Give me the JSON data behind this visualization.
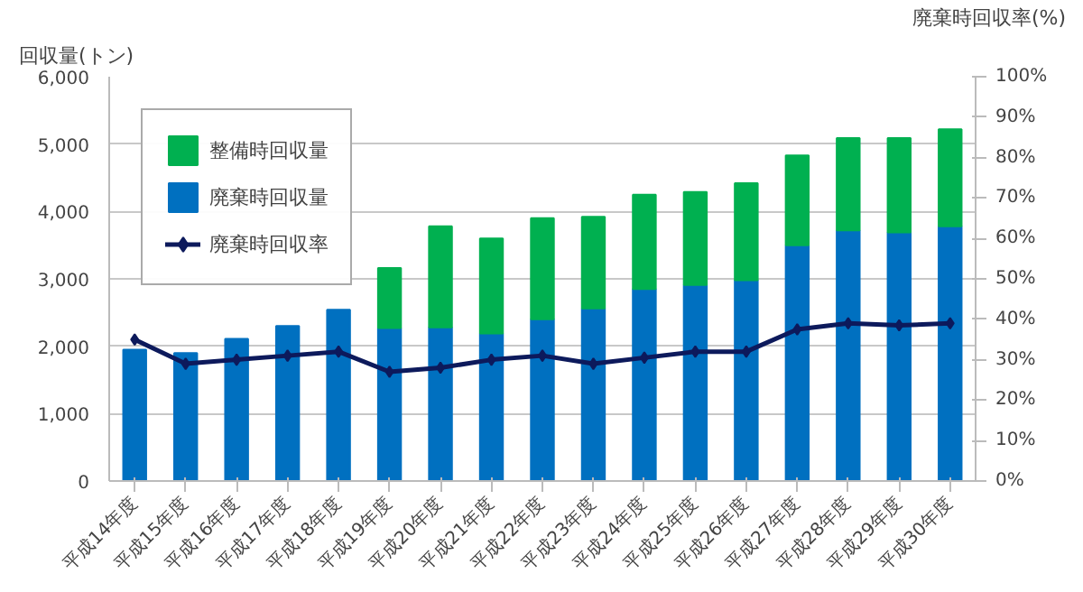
{
  "chart_data": {
    "type": "bar",
    "stacked": true,
    "ylabel": "回収量(トン)",
    "y2label": "廃棄時回収率(%)",
    "categories": [
      "平成14年度",
      "平成15年度",
      "平成16年度",
      "平成17年度",
      "平成18年度",
      "平成19年度",
      "平成20年度",
      "平成21年度",
      "平成22年度",
      "平成23年度",
      "平成24年度",
      "平成25年度",
      "平成26年度",
      "平成27年度",
      "平成28年度",
      "平成29年度",
      "平成30年度"
    ],
    "series": [
      {
        "name": "廃棄時回収量",
        "color": "#0070c0",
        "values": [
          1950,
          1900,
          2110,
          2300,
          2540,
          2270,
          2280,
          2190,
          2400,
          2560,
          2850,
          2910,
          2980,
          3500,
          3720,
          3690,
          3780
        ]
      },
      {
        "name": "整備時回収量",
        "color": "#00b050",
        "values": [
          null,
          null,
          null,
          null,
          null,
          890,
          1500,
          1410,
          1500,
          1360,
          1400,
          1380,
          1440,
          1330,
          1370,
          1400,
          1440
        ]
      },
      {
        "name": "廃棄時回収率",
        "type": "line",
        "axis": "y2",
        "color": "#0d1a5c",
        "marker": "diamond",
        "values": [
          35,
          29,
          30,
          31,
          32,
          27,
          28,
          30,
          31,
          29,
          30.5,
          32,
          32,
          37.5,
          39,
          38.5,
          39
        ]
      }
    ],
    "ylim": [
      0,
      6000
    ],
    "yticks": [
      {
        "value": 0,
        "label": "0"
      },
      {
        "value": 1000,
        "label": "1,000"
      },
      {
        "value": 2000,
        "label": "2,000"
      },
      {
        "value": 3000,
        "label": "3,000"
      },
      {
        "value": 4000,
        "label": "4,000"
      },
      {
        "value": 5000,
        "label": "5,000"
      },
      {
        "value": 6000,
        "label": "6,000"
      }
    ],
    "y2lim": [
      0,
      100
    ],
    "y2ticks": [
      {
        "value": 0,
        "label": "0%"
      },
      {
        "value": 10,
        "label": "10%"
      },
      {
        "value": 20,
        "label": "20%"
      },
      {
        "value": 30,
        "label": "30%"
      },
      {
        "value": 40,
        "label": "40%"
      },
      {
        "value": 50,
        "label": "50%"
      },
      {
        "value": 60,
        "label": "60%"
      },
      {
        "value": 70,
        "label": "70%"
      },
      {
        "value": 80,
        "label": "80%"
      },
      {
        "value": 90,
        "label": "90%"
      },
      {
        "value": 100,
        "label": "100%"
      }
    ],
    "grid": "y",
    "legend": "top left"
  }
}
